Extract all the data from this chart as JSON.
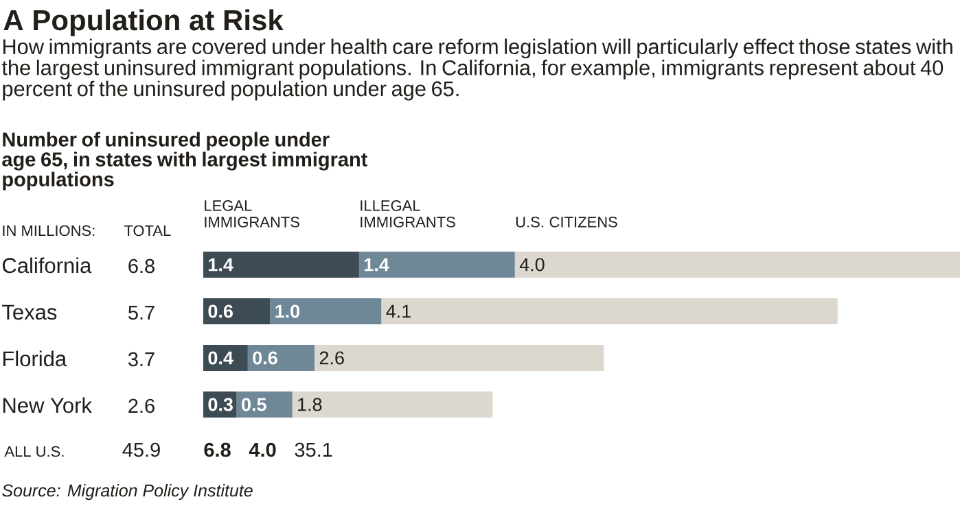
{
  "chart_data": {
    "type": "bar",
    "orientation": "horizontal",
    "stacked": true,
    "legend": "top",
    "title": "A Population at Risk",
    "subtitle": "How immigrants are covered under health care reform legislation will particularly effect those states with the largest uninsured immigrant populations. In California, for example, immigrants represent about 40 percent of the uninsured population under age 65.",
    "categories": [
      "California",
      "Texas",
      "Florida",
      "New York"
    ],
    "series": [
      {
        "name": "LEGAL IMMIGRANTS",
        "color": "#3d4b55",
        "values": [
          1.4,
          0.6,
          0.4,
          0.3
        ],
        "value_labels": [
          "1.4",
          "0.6",
          "0.4",
          "0.3"
        ]
      },
      {
        "name": "ILLEGAL IMMIGRANTS",
        "color": "#6f8898",
        "values": [
          1.4,
          1.0,
          0.6,
          0.5
        ],
        "value_labels": [
          "1.4",
          "1.0",
          "0.6",
          "0.5"
        ]
      },
      {
        "name": "U.S. CITIZENS",
        "color": "#dcd8d0",
        "values": [
          4.0,
          4.1,
          2.6,
          1.8
        ],
        "value_labels": [
          "4.0",
          "4.1",
          "2.6",
          "1.8"
        ]
      }
    ],
    "totals": [
      "6.8",
      "5.7",
      "3.7",
      "2.6"
    ],
    "annotations": [
      "Number of uninsured people under age 65, in states with largest immigrant populations",
      "IN MILLIONS:",
      "TOTAL",
      "ALL U.S.",
      "45.9",
      "6.8",
      "4.0",
      "35.1",
      "Source: Migration Policy Institute"
    ]
  }
}
